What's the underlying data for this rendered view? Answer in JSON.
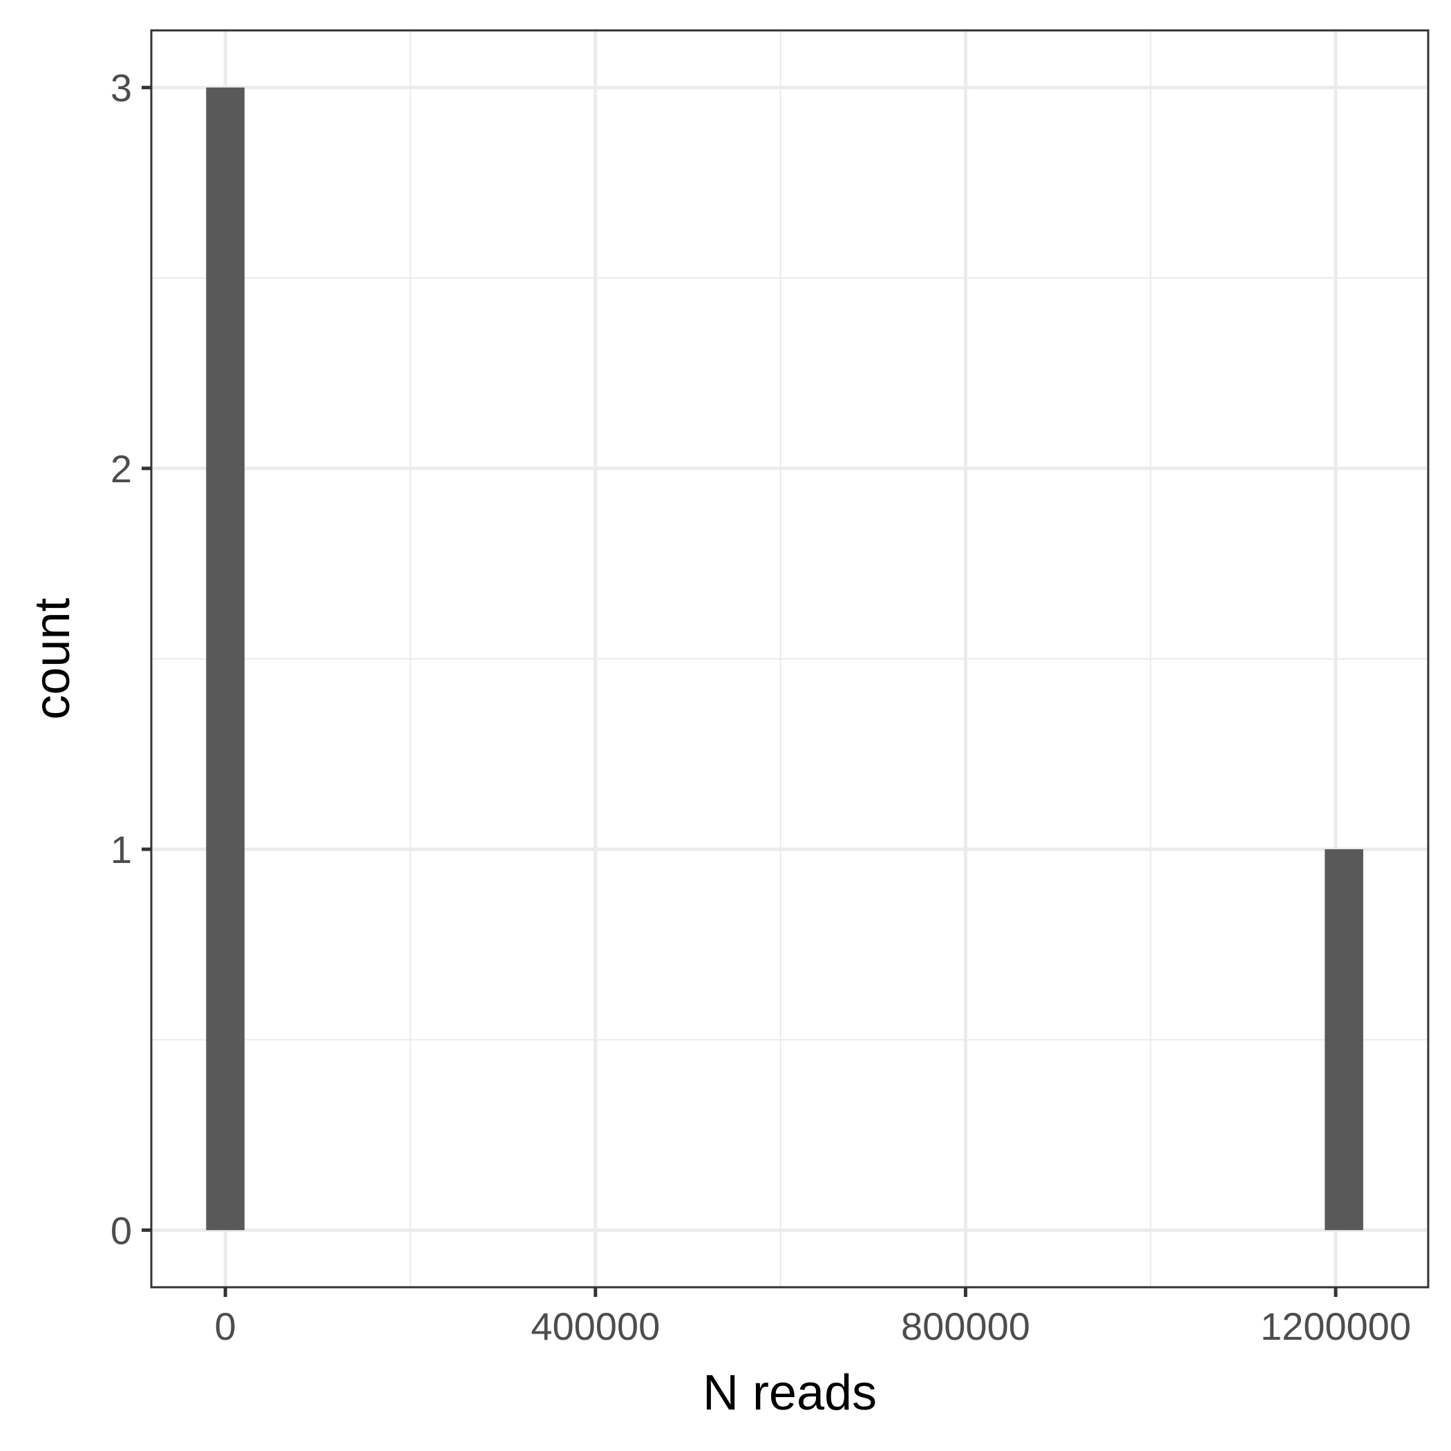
{
  "chart_data": {
    "type": "bar",
    "chart_kind": "histogram",
    "title": "",
    "xlabel": "N reads",
    "ylabel": "count",
    "xlim": [
      -80000,
      1300000
    ],
    "ylim": [
      -0.15,
      3.15
    ],
    "x_ticks": [
      0,
      400000,
      800000,
      1200000
    ],
    "x_tick_labels": [
      "0",
      "400000",
      "800000",
      "1200000"
    ],
    "y_ticks": [
      0,
      1,
      2,
      3
    ],
    "y_tick_labels": [
      "0",
      "1",
      "2",
      "3"
    ],
    "x_minor_ticks": [
      200000,
      600000,
      1000000
    ],
    "y_minor_ticks": [
      0.5,
      1.5,
      2.5
    ],
    "bin_width": 41500,
    "bins": [
      {
        "x": 0,
        "count": 3
      },
      {
        "x": 1209000,
        "count": 1
      }
    ],
    "grid": true,
    "bar_color": "#595959",
    "grid_color": "#ebebeb",
    "panel_border_color": "#333333"
  }
}
